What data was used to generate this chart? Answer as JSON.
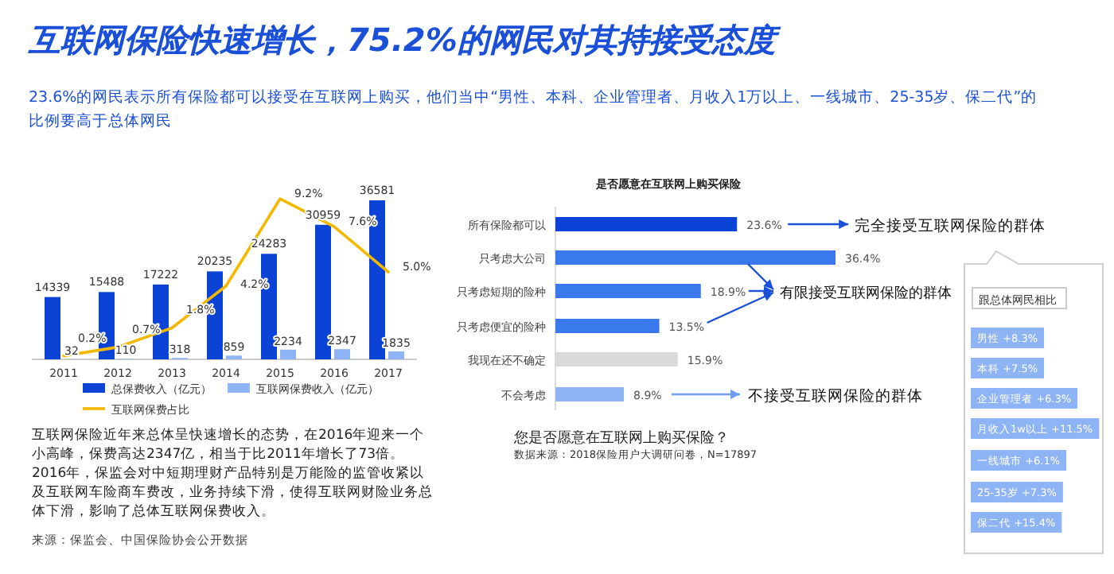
{
  "chart_data": [
    {
      "type": "bar",
      "title": "互联网保险快速增长，75.2%的网民对其持接受态度",
      "subtitle": "23.6%的网民表示所有保险都可以接受在互联网上购买，他们当中“男性、本科、企业管理者、月收入1万以上、一线城市、25-35岁、保二代”的比例要高于总体网民",
      "categories": [
        "2011",
        "2012",
        "2013",
        "2014",
        "2015",
        "2016",
        "2017"
      ],
      "series": [
        {
          "name": "总保费收入（亿元）",
          "color": "#0b43d6",
          "values": [
            14339,
            15488,
            17222,
            20235,
            24283,
            30959,
            36581
          ]
        },
        {
          "name": "互联网保费收入（亿元）",
          "color": "#8fb4f5",
          "values": [
            32,
            110,
            318,
            859,
            2234,
            2347,
            1835
          ]
        },
        {
          "name": "互联网保费占比",
          "type": "line",
          "axis": "y2",
          "color": "#f5b800",
          "values": [
            0.2,
            0.7,
            1.8,
            4.2,
            9.2,
            7.6,
            5.0
          ],
          "value_labels": [
            "0.2%",
            "0.7%",
            "1.8%",
            "4.2%",
            "9.2%",
            "7.6%",
            "5.0%"
          ]
        }
      ],
      "data_labels": true,
      "legend": "bottom",
      "annotations": [
        "互联网保险近年来总体呈快速增长的态势，在2016年迎来一个小高峰，保费高达2347亿，相当于比2011年增长了73倍。2016年，保监会对中短期理财产品特别是万能险的监管收紧以及互联网车险商车费改，业务持续下滑，使得互联网财险业务总体下滑，影响了总体互联网保费收入。",
        "来源：保监会、中国保险协会公开数据"
      ]
    },
    {
      "type": "bar",
      "orientation": "horizontal",
      "title": "是否愿意在互联网上购买保险",
      "categories": [
        "所有保险都可以",
        "只考虑大公司",
        "只考虑短期的险种",
        "只考虑便宜的险种",
        "我现在还不确定",
        "不会考虑"
      ],
      "values": [
        23.6,
        36.4,
        18.9,
        13.5,
        15.9,
        8.9
      ],
      "colors": [
        "#0b43d6",
        "#3a78ee",
        "#3a78ee",
        "#3a78ee",
        "#d9d9d9",
        "#8fb4f5"
      ],
      "value_labels": [
        "23.6%",
        "36.4%",
        "18.9%",
        "13.5%",
        "15.9%",
        "8.9%"
      ],
      "annotations": [
        "完全接受互联网保险的群体",
        "有限接受互联网保险的群体",
        "不接受互联网保险的群体",
        "跟总体网民相比",
        "男性 +8.3%",
        "本科 +7.5%",
        "企业管理者 +6.3%",
        "月收入1w以上 +11.5%",
        "一线城市 +6.1%",
        "25-35岁 +7.3%",
        "保二代 +15.4%",
        "您是否愿意在互联网上购买保险？",
        "数据来源：2018保险用户大调研问卷，N=17897"
      ]
    }
  ]
}
